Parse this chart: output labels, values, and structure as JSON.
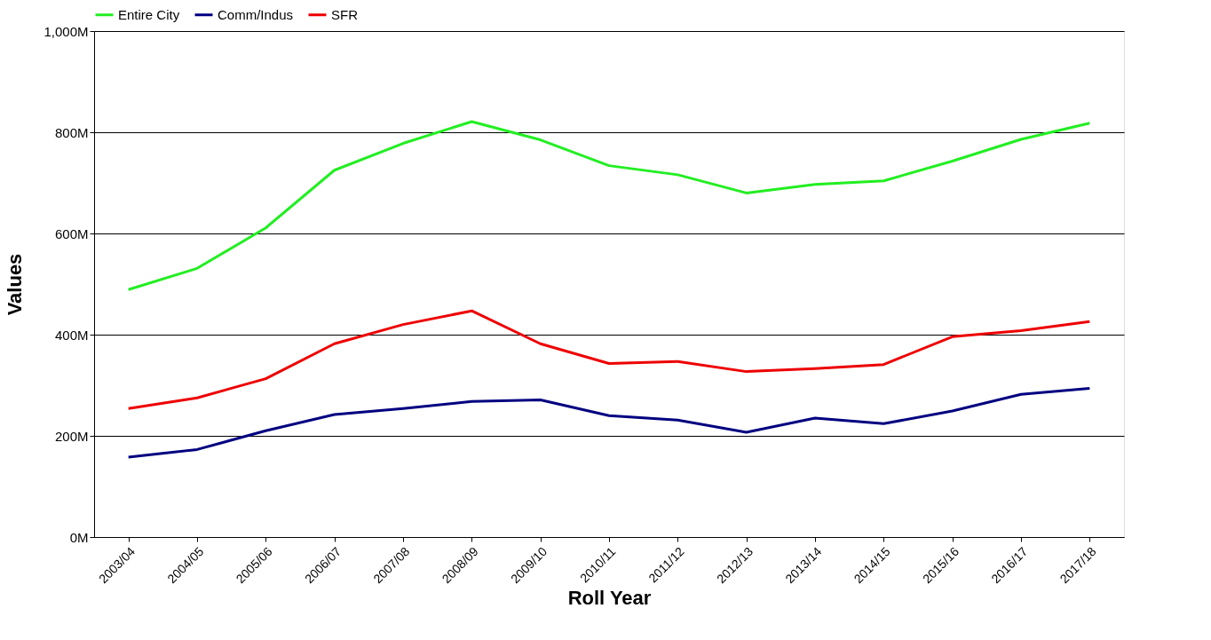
{
  "chart_data": {
    "type": "line",
    "xlabel": "Roll Year",
    "ylabel": "Values",
    "categories": [
      "2003/04",
      "2004/05",
      "2005/06",
      "2006/07",
      "2007/08",
      "2008/09",
      "2009/10",
      "2010/11",
      "2011/12",
      "2012/13",
      "2013/14",
      "2014/15",
      "2015/16",
      "2016/17",
      "2017/18"
    ],
    "series": [
      {
        "name": "Entire City",
        "color": "#22ee22",
        "values": [
          489,
          531,
          611,
          725,
          778,
          821,
          785,
          734,
          716,
          680,
          697,
          704,
          743,
          786,
          818
        ]
      },
      {
        "name": "Comm/Indus",
        "color": "#000080",
        "values": [
          158,
          173,
          210,
          242,
          254,
          268,
          271,
          240,
          231,
          207,
          235,
          224,
          249,
          282,
          294
        ]
      },
      {
        "name": "SFR",
        "color": "#ee0000",
        "values": [
          254,
          275,
          313,
          382,
          420,
          447,
          382,
          343,
          347,
          327,
          333,
          341,
          396,
          408,
          426
        ]
      }
    ],
    "ylim": [
      0,
      1000
    ],
    "yticks": [
      {
        "value": 0,
        "label": "0M"
      },
      {
        "value": 200,
        "label": "200M"
      },
      {
        "value": 400,
        "label": "400M"
      },
      {
        "value": 600,
        "label": "600M"
      },
      {
        "value": 800,
        "label": "800M"
      },
      {
        "value": 1000,
        "label": "1,000M"
      }
    ],
    "grid": "y",
    "legend": "top",
    "marker": "none",
    "line_style": "solid"
  }
}
